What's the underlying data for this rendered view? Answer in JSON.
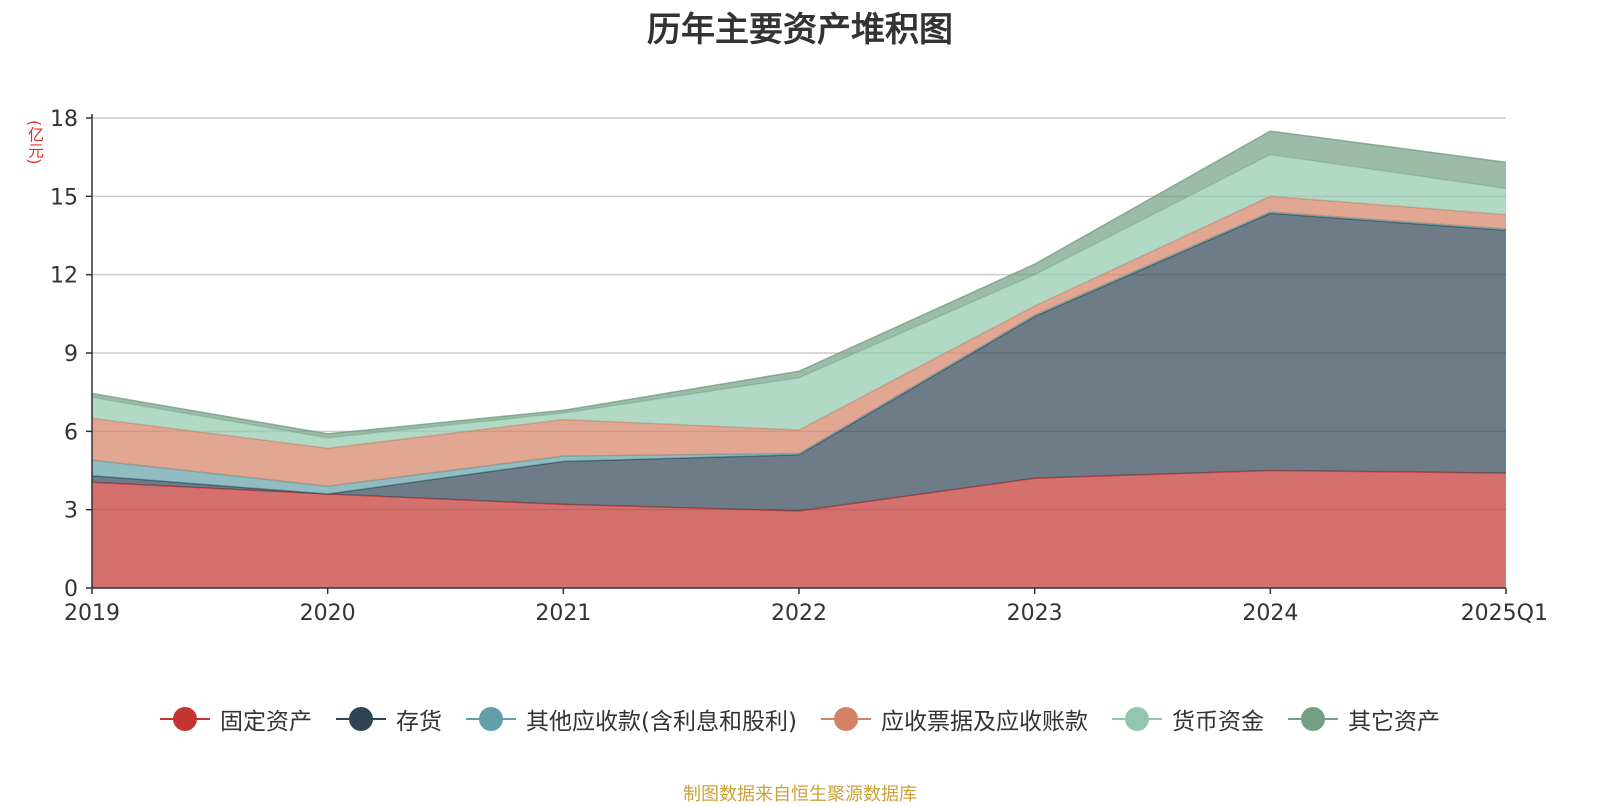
{
  "chart_data": {
    "type": "area",
    "stacked": true,
    "title": "历年主要资产堆积图",
    "ylabel": "(亿元)",
    "x": [
      "2019",
      "2020",
      "2021",
      "2022",
      "2023",
      "2024",
      "2025Q1"
    ],
    "ylim": [
      0,
      18
    ],
    "yticks": [
      0,
      3,
      6,
      9,
      12,
      15,
      18
    ],
    "grid": true,
    "legend_position": "bottom",
    "series": [
      {
        "name": "固定资产",
        "color": "#c23531",
        "values": [
          4.05,
          3.6,
          3.2,
          2.95,
          4.2,
          4.5,
          4.4
        ]
      },
      {
        "name": "存货",
        "color": "#2f4554",
        "values": [
          0.25,
          0.0,
          1.65,
          2.15,
          6.2,
          9.85,
          9.3
        ]
      },
      {
        "name": "其他应收款(含利息和股利)",
        "color": "#61a0a8",
        "values": [
          0.6,
          0.3,
          0.2,
          0.05,
          0.05,
          0.05,
          0.05
        ]
      },
      {
        "name": "应收票据及应收账款",
        "color": "#d48265",
        "values": [
          1.6,
          1.45,
          1.4,
          0.9,
          0.35,
          0.6,
          0.55
        ]
      },
      {
        "name": "货币资金",
        "color": "#91c7ae",
        "values": [
          0.8,
          0.4,
          0.25,
          2.0,
          1.2,
          1.6,
          1.0
        ]
      },
      {
        "name": "其它资产",
        "color": "#749f83",
        "values": [
          0.15,
          0.15,
          0.1,
          0.25,
          0.4,
          0.9,
          1.0
        ]
      }
    ]
  },
  "footer": "制图数据来自恒生聚源数据库"
}
